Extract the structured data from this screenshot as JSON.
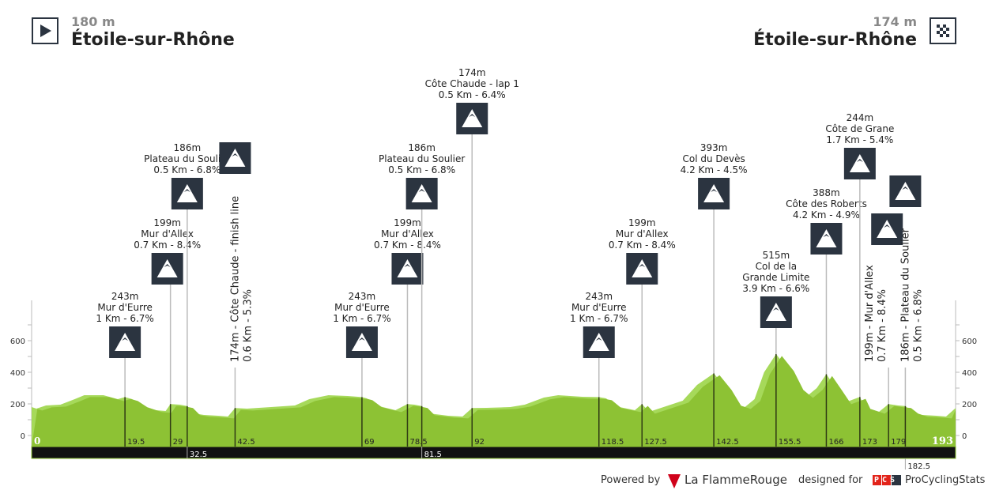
{
  "header": {
    "start": {
      "altitude": "180 m",
      "name": "Étoile-sur-Rhône",
      "icon": "play-start-icon"
    },
    "finish": {
      "altitude": "174 m",
      "name": "Étoile-sur-Rhône",
      "icon": "checkered-flag-icon"
    }
  },
  "footer": {
    "powered_by": "Powered by",
    "brand": "La FlammeRouge",
    "designed_for": "designed for",
    "pcs": "PCS",
    "site": "ProCyclingStats"
  },
  "colors": {
    "profile_dark": "#8dc234",
    "profile_light": "#a6d95a",
    "bar": "#111111",
    "icon_bg": "#2b3440"
  },
  "chart_data": {
    "type": "area",
    "xlabel": "",
    "ylabel": "",
    "xlim": [
      0,
      193
    ],
    "ylim": [
      -100,
      800
    ],
    "yticks": [
      0,
      200,
      400,
      600
    ],
    "distance_start_label": "0",
    "distance_end_label": "193",
    "profile": [
      [
        0,
        180
      ],
      [
        1,
        170
      ],
      [
        3,
        190
      ],
      [
        6,
        195
      ],
      [
        9,
        230
      ],
      [
        11,
        255
      ],
      [
        15,
        255
      ],
      [
        18,
        230
      ],
      [
        19.5,
        243
      ],
      [
        21,
        230
      ],
      [
        23,
        190
      ],
      [
        26,
        160
      ],
      [
        28,
        155
      ],
      [
        29,
        199
      ],
      [
        31,
        195
      ],
      [
        32.5,
        186
      ],
      [
        34,
        140
      ],
      [
        36,
        130
      ],
      [
        39,
        125
      ],
      [
        41,
        120
      ],
      [
        42.5,
        174
      ],
      [
        45,
        170
      ],
      [
        50,
        180
      ],
      [
        55,
        190
      ],
      [
        58,
        230
      ],
      [
        62,
        255
      ],
      [
        66,
        250
      ],
      [
        69,
        243
      ],
      [
        70,
        235
      ],
      [
        72,
        190
      ],
      [
        76,
        160
      ],
      [
        78.5,
        199
      ],
      [
        80,
        195
      ],
      [
        81.5,
        186
      ],
      [
        83,
        140
      ],
      [
        87,
        125
      ],
      [
        90,
        120
      ],
      [
        92,
        174
      ],
      [
        95,
        175
      ],
      [
        100,
        180
      ],
      [
        103,
        195
      ],
      [
        107,
        240
      ],
      [
        110,
        255
      ],
      [
        115,
        245
      ],
      [
        118.5,
        243
      ],
      [
        120,
        235
      ],
      [
        122,
        185
      ],
      [
        126,
        160
      ],
      [
        127.5,
        199
      ],
      [
        129,
        150
      ],
      [
        132,
        180
      ],
      [
        136,
        220
      ],
      [
        139,
        320
      ],
      [
        142.5,
        393
      ],
      [
        145,
        300
      ],
      [
        147,
        200
      ],
      [
        149,
        180
      ],
      [
        151,
        230
      ],
      [
        153,
        400
      ],
      [
        155.5,
        515
      ],
      [
        158,
        420
      ],
      [
        160,
        300
      ],
      [
        162,
        250
      ],
      [
        164,
        300
      ],
      [
        166,
        388
      ],
      [
        168,
        300
      ],
      [
        170,
        210
      ],
      [
        173,
        244
      ],
      [
        174,
        180
      ],
      [
        176,
        160
      ],
      [
        177,
        150
      ],
      [
        179,
        199
      ],
      [
        181,
        190
      ],
      [
        182.5,
        186
      ],
      [
        184,
        150
      ],
      [
        186,
        130
      ],
      [
        189,
        125
      ],
      [
        191,
        120
      ],
      [
        193,
        174
      ]
    ],
    "km_markers": [
      "19.5",
      "29",
      "42.5",
      "69",
      "78.5",
      "92",
      "118.5",
      "127.5",
      "142.5",
      "155.5",
      "166",
      "173",
      "179"
    ],
    "bar_markers": [
      "32.5",
      "81.5"
    ],
    "below_markers": [
      "182.5"
    ],
    "climbs": [
      {
        "km": 19.5,
        "lines": [
          "243m",
          "Mur d'Eurre",
          "1 Km - 6.7%"
        ]
      },
      {
        "km": 29,
        "lines": [
          "199m",
          "Mur d'Allex",
          "0.7 Km - 8.4%"
        ]
      },
      {
        "km": 32.5,
        "lines": [
          "186m",
          "Plateau du Soulier",
          "0.5 Km - 6.8%"
        ]
      },
      {
        "km": 42.5,
        "lines": [
          "174m - Côte Chaude - finish line",
          "0.6 Km - 5.3%"
        ],
        "vertical": true
      },
      {
        "km": 69,
        "lines": [
          "243m",
          "Mur d'Eurre",
          "1 Km - 6.7%"
        ]
      },
      {
        "km": 78.5,
        "lines": [
          "199m",
          "Mur d'Allex",
          "0.7 Km - 8.4%"
        ]
      },
      {
        "km": 81.5,
        "lines": [
          "186m",
          "Plateau du Soulier",
          "0.5 Km - 6.8%"
        ]
      },
      {
        "km": 92,
        "lines": [
          "174m",
          "Côte Chaude - lap 1",
          "0.5 Km - 6.4%"
        ]
      },
      {
        "km": 118.5,
        "lines": [
          "243m",
          "Mur d'Eurre",
          "1 Km - 6.7%"
        ]
      },
      {
        "km": 127.5,
        "lines": [
          "199m",
          "Mur d'Allex",
          "0.7 Km - 8.4%"
        ]
      },
      {
        "km": 142.5,
        "lines": [
          "393m",
          "Col du Devès",
          "4.2 Km - 4.5%"
        ]
      },
      {
        "km": 155.5,
        "lines": [
          "515m",
          "Col de la",
          "Grande Limite",
          "3.9 Km - 6.6%"
        ]
      },
      {
        "km": 166,
        "lines": [
          "388m",
          "Côte des Roberts",
          "4.2 Km - 4.9%"
        ]
      },
      {
        "km": 173,
        "lines": [
          "244m",
          "Côte de Grane",
          "1.7 Km - 5.4%"
        ]
      },
      {
        "km": 179,
        "lines": [
          "199m - Mur d'Allex",
          "0.7 Km - 8.4%"
        ],
        "vertical": true
      },
      {
        "km": 182.5,
        "lines": [
          "186m - Plateau du Soulier",
          "0.5 Km - 6.8%"
        ],
        "vertical": true
      }
    ]
  }
}
